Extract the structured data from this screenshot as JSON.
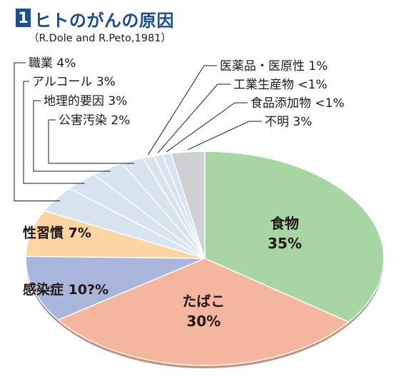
{
  "header": {
    "number": "1",
    "title": "ヒトのがんの原因",
    "source": "（R.Dole and R.Peto,1981）"
  },
  "chart_data": {
    "type": "pie",
    "title": "ヒトのがんの原因",
    "subtitle": "（R.Dole and R.Peto,1981）",
    "slices": [
      {
        "label": "食物",
        "value_text": "35%",
        "value": 35,
        "color": "#a7d6a4",
        "label_style": "inside"
      },
      {
        "label": "たばこ",
        "value_text": "30%",
        "value": 30,
        "color": "#f5b6a0",
        "label_style": "inside"
      },
      {
        "label": "感染症",
        "value_text": "10?%",
        "value": 10,
        "color": "#a9b5db",
        "label_style": "left"
      },
      {
        "label": "性習慣",
        "value_text": "7%",
        "value": 7,
        "color": "#fdd5a5",
        "label_style": "left"
      },
      {
        "label": "職業",
        "value_text": "4%",
        "value": 4,
        "color": "#d8e5f1",
        "label_style": "callout"
      },
      {
        "label": "アルコール",
        "value_text": "3%",
        "value": 3,
        "color": "#d8e5f1",
        "label_style": "callout"
      },
      {
        "label": "地理的要因",
        "value_text": "3%",
        "value": 3,
        "color": "#d8e5f1",
        "label_style": "callout"
      },
      {
        "label": "公害汚染",
        "value_text": "2%",
        "value": 2,
        "color": "#d8e5f1",
        "label_style": "callout"
      },
      {
        "label": "医薬品・医原性",
        "value_text": "1%",
        "value": 1,
        "color": "#d8e5f1",
        "label_style": "callout"
      },
      {
        "label": "工業生産物",
        "value_text": "<1%",
        "value": 0.8,
        "color": "#d8e5f1",
        "label_style": "callout"
      },
      {
        "label": "食品添加物",
        "value_text": "<1%",
        "value": 0.8,
        "color": "#d8e5f1",
        "label_style": "callout"
      },
      {
        "label": "不明",
        "value_text": "3%",
        "value": 3,
        "color": "#cfd0d2",
        "label_style": "callout"
      }
    ]
  }
}
